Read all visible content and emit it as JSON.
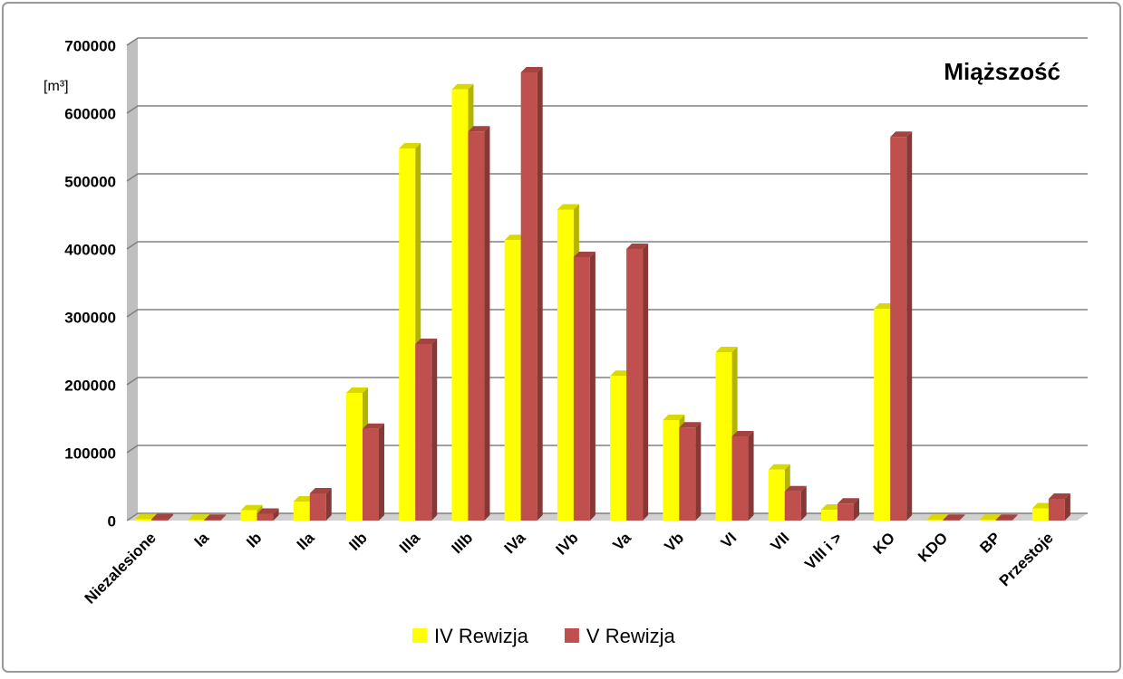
{
  "chart_data": {
    "type": "bar",
    "title": "Miąższość",
    "y_label": "[m³]",
    "categories": [
      "Niezalesione",
      "Ia",
      "Ib",
      "IIa",
      "IIb",
      "IIIa",
      "IIIb",
      "IVa",
      "IVb",
      "Va",
      "Vb",
      "VI",
      "VII",
      "VIII i >",
      "KO",
      "KDO",
      "BP",
      "Przestoje"
    ],
    "series": [
      {
        "name": "IV Rewizja",
        "color": "#ffff00",
        "values": [
          2000,
          1000,
          15000,
          28000,
          188000,
          548000,
          635000,
          413000,
          458000,
          213000,
          148000,
          248000,
          75000,
          16000,
          312000,
          1000,
          1000,
          18000
        ]
      },
      {
        "name": "V Rewizja",
        "color": "#c0504d",
        "values": [
          2000,
          1000,
          10000,
          40000,
          135000,
          260000,
          573000,
          660000,
          388000,
          400000,
          137000,
          124000,
          43000,
          25000,
          565000,
          1000,
          1000,
          32000
        ]
      }
    ],
    "ylim": [
      0,
      700000
    ],
    "yticks": [
      0,
      100000,
      200000,
      300000,
      400000,
      500000,
      600000,
      700000
    ],
    "grid": true,
    "legend": "bottom"
  }
}
